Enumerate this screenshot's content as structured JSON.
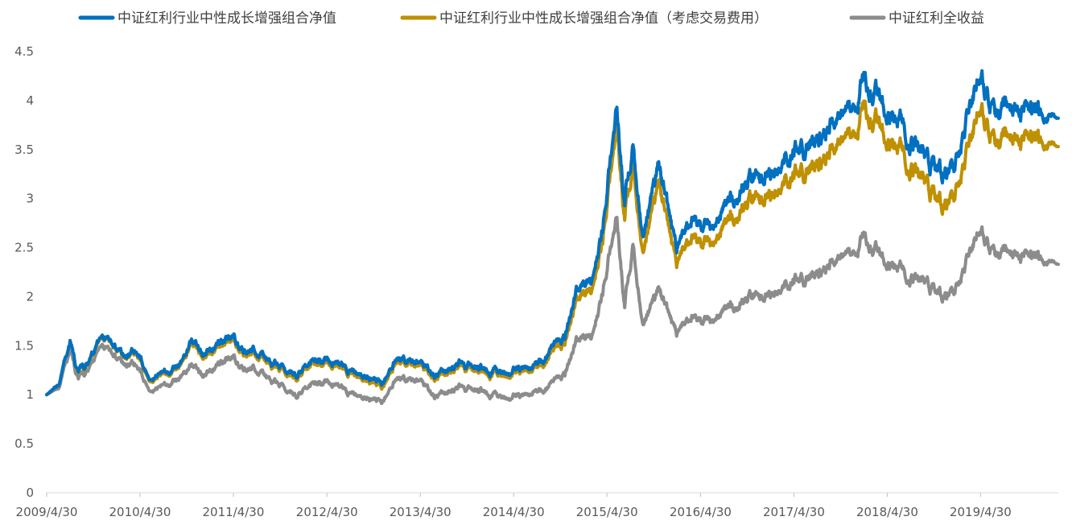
{
  "chart_data": {
    "type": "line",
    "title": "",
    "xlabel": "",
    "ylabel": "",
    "x_range": [
      "2009-04-30",
      "2020-02-28"
    ],
    "ylim": [
      0,
      4.5
    ],
    "y_ticks": [
      {
        "value": 0,
        "label": "0"
      },
      {
        "value": 0.5,
        "label": "0.5"
      },
      {
        "value": 1,
        "label": "1"
      },
      {
        "value": 1.5,
        "label": "1.5"
      },
      {
        "value": 2,
        "label": "2"
      },
      {
        "value": 2.5,
        "label": "2.5"
      },
      {
        "value": 3,
        "label": "3"
      },
      {
        "value": 3.5,
        "label": "3.5"
      },
      {
        "value": 4,
        "label": "4"
      },
      {
        "value": 4.5,
        "label": "4.5"
      }
    ],
    "x_ticks": [
      {
        "date": "2009-04-30",
        "label": "2009/4/30"
      },
      {
        "date": "2010-04-30",
        "label": "2010/4/30"
      },
      {
        "date": "2011-04-30",
        "label": "2011/4/30"
      },
      {
        "date": "2012-04-30",
        "label": "2012/4/30"
      },
      {
        "date": "2013-04-30",
        "label": "2013/4/30"
      },
      {
        "date": "2014-04-30",
        "label": "2014/4/30"
      },
      {
        "date": "2015-04-30",
        "label": "2015/4/30"
      },
      {
        "date": "2016-04-30",
        "label": "2016/4/30"
      },
      {
        "date": "2017-04-30",
        "label": "2017/4/30"
      },
      {
        "date": "2018-04-30",
        "label": "2018/4/30"
      },
      {
        "date": "2019-04-30",
        "label": "2019/4/30"
      }
    ],
    "grid": false,
    "legend_position": "top",
    "series": [
      {
        "name": "中证红利行业中性成长增强组合净值",
        "color": "#0070C0",
        "points": [
          [
            "2009-04-30",
            1.0
          ],
          [
            "2009-06-15",
            1.1
          ],
          [
            "2009-07-31",
            1.56
          ],
          [
            "2009-08-31",
            1.22
          ],
          [
            "2009-10-15",
            1.33
          ],
          [
            "2009-11-30",
            1.54
          ],
          [
            "2010-01-15",
            1.5
          ],
          [
            "2010-02-28",
            1.38
          ],
          [
            "2010-04-15",
            1.47
          ],
          [
            "2010-05-31",
            1.2
          ],
          [
            "2010-07-15",
            1.18
          ],
          [
            "2010-08-31",
            1.28
          ],
          [
            "2010-10-15",
            1.33
          ],
          [
            "2010-11-15",
            1.55
          ],
          [
            "2010-12-31",
            1.44
          ],
          [
            "2011-03-15",
            1.53
          ],
          [
            "2011-04-30",
            1.59
          ],
          [
            "2011-06-15",
            1.43
          ],
          [
            "2011-07-15",
            1.49
          ],
          [
            "2011-09-30",
            1.32
          ],
          [
            "2011-12-31",
            1.2
          ],
          [
            "2012-02-28",
            1.33
          ],
          [
            "2012-05-15",
            1.34
          ],
          [
            "2012-07-31",
            1.25
          ],
          [
            "2012-09-30",
            1.2
          ],
          [
            "2012-11-30",
            1.12
          ],
          [
            "2013-01-31",
            1.38
          ],
          [
            "2013-04-30",
            1.3
          ],
          [
            "2013-06-25",
            1.18
          ],
          [
            "2013-09-30",
            1.32
          ],
          [
            "2013-12-31",
            1.27
          ],
          [
            "2014-03-15",
            1.22
          ],
          [
            "2014-05-31",
            1.28
          ],
          [
            "2014-07-15",
            1.3
          ],
          [
            "2014-09-30",
            1.48
          ],
          [
            "2014-11-15",
            1.6
          ],
          [
            "2014-12-31",
            2.05
          ],
          [
            "2015-02-28",
            2.2
          ],
          [
            "2015-04-15",
            2.7
          ],
          [
            "2015-06-08",
            4.06
          ],
          [
            "2015-07-08",
            2.95
          ],
          [
            "2015-08-10",
            3.5
          ],
          [
            "2015-09-15",
            2.58
          ],
          [
            "2015-11-15",
            3.3
          ],
          [
            "2016-01-28",
            2.45
          ],
          [
            "2016-03-31",
            2.8
          ],
          [
            "2016-06-30",
            2.75
          ],
          [
            "2016-09-30",
            3.1
          ],
          [
            "2016-12-31",
            3.22
          ],
          [
            "2017-03-31",
            3.4
          ],
          [
            "2017-06-30",
            3.55
          ],
          [
            "2017-09-30",
            3.85
          ],
          [
            "2017-11-15",
            3.92
          ],
          [
            "2018-01-25",
            4.27
          ],
          [
            "2018-03-31",
            4.0
          ],
          [
            "2018-06-30",
            3.8
          ],
          [
            "2018-09-30",
            3.38
          ],
          [
            "2018-11-30",
            3.25
          ],
          [
            "2019-01-31",
            3.4
          ],
          [
            "2019-03-31",
            4.0
          ],
          [
            "2019-04-20",
            4.25
          ],
          [
            "2019-06-30",
            3.82
          ],
          [
            "2019-09-30",
            3.92
          ],
          [
            "2019-12-31",
            3.86
          ],
          [
            "2020-02-28",
            3.82
          ]
        ]
      },
      {
        "name": "中证红利行业中性成长增强组合净值（考虑交易费用）",
        "color": "#BF9000",
        "points": [
          [
            "2009-04-30",
            1.0
          ],
          [
            "2009-06-15",
            1.1
          ],
          [
            "2009-07-31",
            1.56
          ],
          [
            "2009-08-31",
            1.21
          ],
          [
            "2009-10-15",
            1.32
          ],
          [
            "2009-11-30",
            1.53
          ],
          [
            "2010-01-15",
            1.49
          ],
          [
            "2010-02-28",
            1.37
          ],
          [
            "2010-04-15",
            1.45
          ],
          [
            "2010-05-31",
            1.18
          ],
          [
            "2010-07-15",
            1.16
          ],
          [
            "2010-08-31",
            1.26
          ],
          [
            "2010-10-15",
            1.31
          ],
          [
            "2010-11-15",
            1.52
          ],
          [
            "2010-12-31",
            1.41
          ],
          [
            "2011-03-15",
            1.5
          ],
          [
            "2011-04-30",
            1.56
          ],
          [
            "2011-06-15",
            1.4
          ],
          [
            "2011-07-15",
            1.46
          ],
          [
            "2011-09-30",
            1.29
          ],
          [
            "2011-12-31",
            1.17
          ],
          [
            "2012-02-28",
            1.3
          ],
          [
            "2012-05-15",
            1.31
          ],
          [
            "2012-07-31",
            1.22
          ],
          [
            "2012-09-30",
            1.17
          ],
          [
            "2012-11-30",
            1.08
          ],
          [
            "2013-01-31",
            1.35
          ],
          [
            "2013-04-30",
            1.27
          ],
          [
            "2013-06-25",
            1.15
          ],
          [
            "2013-09-30",
            1.29
          ],
          [
            "2013-12-31",
            1.24
          ],
          [
            "2014-03-15",
            1.19
          ],
          [
            "2014-05-31",
            1.25
          ],
          [
            "2014-07-15",
            1.27
          ],
          [
            "2014-09-30",
            1.43
          ],
          [
            "2014-11-15",
            1.54
          ],
          [
            "2014-12-31",
            1.96
          ],
          [
            "2015-02-28",
            2.1
          ],
          [
            "2015-04-15",
            2.58
          ],
          [
            "2015-06-08",
            3.88
          ],
          [
            "2015-07-08",
            2.8
          ],
          [
            "2015-08-10",
            3.32
          ],
          [
            "2015-09-15",
            2.42
          ],
          [
            "2015-11-15",
            3.12
          ],
          [
            "2016-01-28",
            2.3
          ],
          [
            "2016-03-31",
            2.62
          ],
          [
            "2016-06-30",
            2.58
          ],
          [
            "2016-09-30",
            2.9
          ],
          [
            "2016-12-31",
            3.0
          ],
          [
            "2017-03-31",
            3.18
          ],
          [
            "2017-06-30",
            3.3
          ],
          [
            "2017-09-30",
            3.58
          ],
          [
            "2017-11-15",
            3.65
          ],
          [
            "2018-01-25",
            3.98
          ],
          [
            "2018-03-31",
            3.72
          ],
          [
            "2018-06-30",
            3.52
          ],
          [
            "2018-09-30",
            3.12
          ],
          [
            "2018-11-30",
            2.92
          ],
          [
            "2019-01-31",
            3.1
          ],
          [
            "2019-03-31",
            3.65
          ],
          [
            "2019-04-20",
            3.92
          ],
          [
            "2019-06-30",
            3.52
          ],
          [
            "2019-09-30",
            3.62
          ],
          [
            "2019-12-31",
            3.58
          ],
          [
            "2020-02-28",
            3.53
          ]
        ]
      },
      {
        "name": "中证红利全收益",
        "color": "#8C8C8C",
        "points": [
          [
            "2009-04-30",
            1.0
          ],
          [
            "2009-06-15",
            1.07
          ],
          [
            "2009-07-31",
            1.48
          ],
          [
            "2009-08-31",
            1.15
          ],
          [
            "2009-10-15",
            1.26
          ],
          [
            "2009-11-30",
            1.45
          ],
          [
            "2010-01-15",
            1.4
          ],
          [
            "2010-02-28",
            1.3
          ],
          [
            "2010-04-15",
            1.33
          ],
          [
            "2010-05-31",
            1.08
          ],
          [
            "2010-07-15",
            1.05
          ],
          [
            "2010-08-31",
            1.15
          ],
          [
            "2010-10-15",
            1.18
          ],
          [
            "2010-11-15",
            1.3
          ],
          [
            "2010-12-31",
            1.22
          ],
          [
            "2011-03-15",
            1.32
          ],
          [
            "2011-04-30",
            1.38
          ],
          [
            "2011-06-15",
            1.25
          ],
          [
            "2011-07-15",
            1.3
          ],
          [
            "2011-09-30",
            1.14
          ],
          [
            "2011-12-31",
            0.99
          ],
          [
            "2012-02-28",
            1.1
          ],
          [
            "2012-05-15",
            1.12
          ],
          [
            "2012-07-31",
            1.02
          ],
          [
            "2012-09-30",
            0.98
          ],
          [
            "2012-11-30",
            0.93
          ],
          [
            "2013-01-31",
            1.18
          ],
          [
            "2013-04-30",
            1.12
          ],
          [
            "2013-06-25",
            0.97
          ],
          [
            "2013-09-30",
            1.08
          ],
          [
            "2013-12-31",
            1.04
          ],
          [
            "2014-03-15",
            0.97
          ],
          [
            "2014-05-31",
            1.0
          ],
          [
            "2014-07-15",
            1.03
          ],
          [
            "2014-09-30",
            1.12
          ],
          [
            "2014-11-15",
            1.22
          ],
          [
            "2014-12-31",
            1.55
          ],
          [
            "2015-02-28",
            1.62
          ],
          [
            "2015-04-15",
            2.05
          ],
          [
            "2015-06-08",
            2.9
          ],
          [
            "2015-07-08",
            1.9
          ],
          [
            "2015-08-10",
            2.5
          ],
          [
            "2015-09-15",
            1.7
          ],
          [
            "2015-11-15",
            2.05
          ],
          [
            "2016-01-28",
            1.6
          ],
          [
            "2016-03-31",
            1.8
          ],
          [
            "2016-06-30",
            1.78
          ],
          [
            "2016-09-30",
            1.95
          ],
          [
            "2016-12-31",
            2.0
          ],
          [
            "2017-03-31",
            2.12
          ],
          [
            "2017-06-30",
            2.2
          ],
          [
            "2017-09-30",
            2.4
          ],
          [
            "2017-11-15",
            2.45
          ],
          [
            "2018-01-25",
            2.65
          ],
          [
            "2018-03-31",
            2.42
          ],
          [
            "2018-06-30",
            2.3
          ],
          [
            "2018-09-30",
            2.12
          ],
          [
            "2018-11-30",
            2.0
          ],
          [
            "2019-01-31",
            2.1
          ],
          [
            "2019-03-31",
            2.5
          ],
          [
            "2019-04-20",
            2.68
          ],
          [
            "2019-06-30",
            2.4
          ],
          [
            "2019-09-30",
            2.43
          ],
          [
            "2019-12-31",
            2.38
          ],
          [
            "2020-02-28",
            2.33
          ]
        ]
      }
    ]
  }
}
